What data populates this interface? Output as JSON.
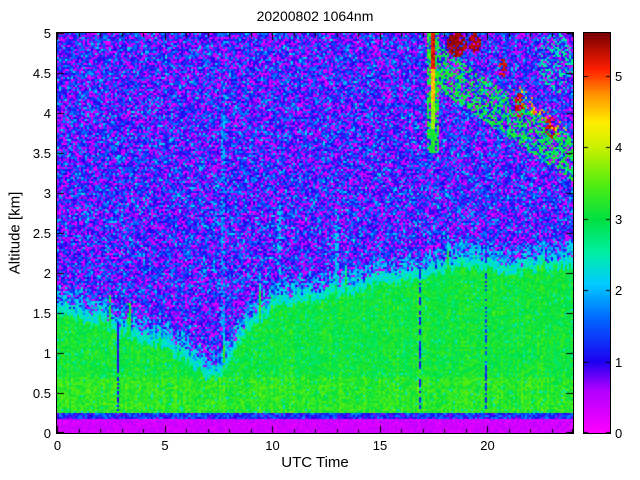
{
  "figure": {
    "background": "#ffffff",
    "axis_color": "#000000"
  },
  "chart_data": {
    "type": "heatmap",
    "title": "20200802 1064nm",
    "xlabel": "UTC Time",
    "ylabel": "Altitude [km]",
    "x_range": [
      0,
      24
    ],
    "y_range": [
      0,
      5
    ],
    "x_ticks": [
      0,
      5,
      10,
      15,
      20
    ],
    "x_minor_tick_step": 1,
    "y_ticks": [
      0,
      0.5,
      1,
      1.5,
      2,
      2.5,
      3,
      3.5,
      4,
      4.5,
      5
    ],
    "grid": false,
    "colorbar": {
      "position": "right",
      "range": [
        0,
        5.6
      ],
      "ticks": [
        0,
        1,
        2,
        3,
        4,
        5
      ]
    },
    "colormap": {
      "name": "jet-with-magenta-low",
      "stops": [
        [
          0.0,
          "#ff00ff"
        ],
        [
          0.6,
          "#b300ff"
        ],
        [
          1.0,
          "#1e00f0"
        ],
        [
          1.6,
          "#0066ff"
        ],
        [
          2.1,
          "#00ccff"
        ],
        [
          2.55,
          "#00f0a0"
        ],
        [
          3.0,
          "#00e040"
        ],
        [
          3.5,
          "#55ee11"
        ],
        [
          4.0,
          "#c8f000"
        ],
        [
          4.35,
          "#ffee00"
        ],
        [
          4.75,
          "#ff9100"
        ],
        [
          5.1,
          "#ff1e00"
        ],
        [
          5.6,
          "#7a0000"
        ]
      ]
    },
    "surface_return_band_km": [
      0,
      0.19
    ],
    "noise_region_value_range": [
      0,
      2.3
    ],
    "boundary_layer_top_km": {
      "t": [
        0,
        1,
        2,
        3,
        4,
        5,
        6,
        6.5,
        7,
        7.5,
        8,
        8.5,
        9,
        9.5,
        10,
        11,
        12,
        13,
        14,
        15,
        16,
        17,
        18,
        19,
        20,
        21,
        22,
        23,
        24
      ],
      "top": [
        1.62,
        1.55,
        1.48,
        1.38,
        1.28,
        1.18,
        1.02,
        0.92,
        0.82,
        0.78,
        0.95,
        1.25,
        1.45,
        1.55,
        1.68,
        1.75,
        1.78,
        1.82,
        1.88,
        1.98,
        2.0,
        2.05,
        2.15,
        2.2,
        2.15,
        2.12,
        2.15,
        2.18,
        2.2
      ]
    },
    "features": [
      {
        "type": "streak",
        "name": "green-spike",
        "t": 2.45,
        "halfwidth": 0.07,
        "alt": [
          1.3,
          1.72
        ],
        "value": 3.1,
        "density": 0.85
      },
      {
        "type": "streak",
        "name": "green-spike",
        "t": 3.35,
        "halfwidth": 0.07,
        "alt": [
          1.2,
          1.62
        ],
        "value": 3.05,
        "density": 0.85
      },
      {
        "type": "streak",
        "name": "attenuated-gap",
        "t": 2.85,
        "halfwidth": 0.05,
        "alt": [
          0.28,
          1.4
        ],
        "value": 1.1,
        "density": 0.75
      },
      {
        "type": "streak",
        "name": "cyan-updraft",
        "t": 7.75,
        "halfwidth": 0.09,
        "alt": [
          0.85,
          4.2
        ],
        "value": 1.9,
        "density": 0.4
      },
      {
        "type": "streak",
        "name": "cyan-updraft",
        "t": 10.35,
        "halfwidth": 0.09,
        "alt": [
          1.75,
          2.9
        ],
        "value": 2.15,
        "density": 0.5
      },
      {
        "type": "streak",
        "name": "cyan-updraft",
        "t": 13.0,
        "halfwidth": 0.08,
        "alt": [
          1.85,
          2.7
        ],
        "value": 2.1,
        "density": 0.5
      },
      {
        "type": "streak",
        "name": "attenuated-gap",
        "t": 16.92,
        "halfwidth": 0.05,
        "alt": [
          0.3,
          2.05
        ],
        "value": 1.15,
        "density": 0.75
      },
      {
        "type": "streak",
        "name": "attenuated-gap",
        "t": 19.95,
        "halfwidth": 0.05,
        "alt": [
          0.3,
          3.3
        ],
        "value": 1.3,
        "density": 0.65
      },
      {
        "type": "band",
        "name": "elevated-aerosol-layer",
        "t": [
          17.8,
          24.0
        ],
        "alt_start": 4.55,
        "alt_end": 3.42,
        "thickness": 0.55,
        "value": 3.0,
        "density": 0.5
      },
      {
        "type": "band",
        "name": "layer-hot-specks",
        "t": [
          21.2,
          23.7
        ],
        "alt_start": 4.3,
        "alt_end": 3.75,
        "thickness": 0.2,
        "value": 4.7,
        "density": 0.2
      },
      {
        "type": "plume",
        "name": "smoke-plume",
        "t": 17.5,
        "core_halfwidth": 0.11,
        "fringe_halfwidth": 0.28,
        "alt": [
          3.5,
          5.0
        ],
        "profile": [
          [
            4.55,
            5.25
          ],
          [
            4.15,
            4.55
          ],
          [
            3.8,
            3.75
          ],
          [
            3.5,
            3.15
          ]
        ]
      },
      {
        "type": "blob",
        "name": "dense-smoke",
        "t": [
          18.1,
          19.05
        ],
        "alt": [
          4.7,
          5.0
        ],
        "value": 5.45,
        "density": 0.85
      },
      {
        "type": "blob",
        "name": "dense-smoke",
        "t": [
          19.15,
          19.7
        ],
        "alt": [
          4.75,
          5.0
        ],
        "value": 5.4,
        "density": 0.8
      },
      {
        "type": "blob",
        "name": "dense-smoke",
        "t": [
          20.55,
          20.9
        ],
        "alt": [
          4.45,
          4.68
        ],
        "value": 5.25,
        "density": 0.55
      },
      {
        "type": "blob",
        "name": "dense-smoke",
        "t": [
          21.3,
          21.75
        ],
        "alt": [
          3.95,
          4.25
        ],
        "value": 5.3,
        "density": 0.5
      },
      {
        "type": "blob",
        "name": "dense-smoke",
        "t": [
          22.7,
          23.2
        ],
        "alt": [
          3.68,
          3.95
        ],
        "value": 5.25,
        "density": 0.5
      },
      {
        "type": "blob",
        "name": "speckle-cloud",
        "t": [
          22.4,
          24.0
        ],
        "alt": [
          4.25,
          5.0
        ],
        "value": 2.55,
        "density": 0.28
      }
    ]
  }
}
